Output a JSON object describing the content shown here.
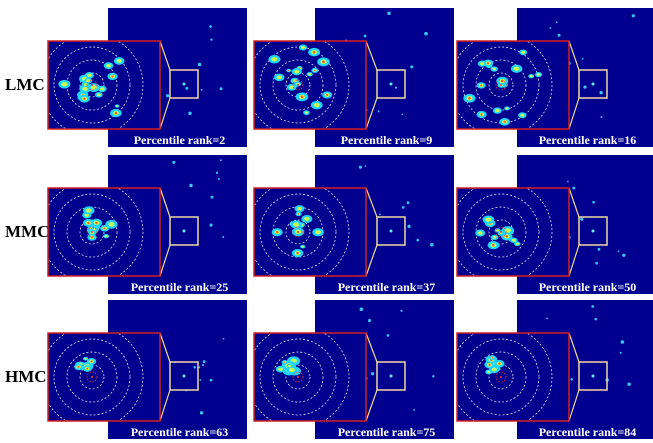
{
  "rows": [
    {
      "label": "LMC",
      "panels": [
        {
          "caption": "Percentile rank=2"
        },
        {
          "caption": "Percentile rank=9"
        },
        {
          "caption": "Percentile rank=16"
        }
      ]
    },
    {
      "label": "MMC",
      "panels": [
        {
          "caption": "Percentile rank=25"
        },
        {
          "caption": "Percentile rank=37"
        },
        {
          "caption": "Percentile rank=50"
        }
      ]
    },
    {
      "label": "HMC",
      "panels": [
        {
          "caption": "Percentile rank=63"
        },
        {
          "caption": "Percentile rank=75"
        },
        {
          "caption": "Percentile rank=84"
        }
      ]
    }
  ]
}
